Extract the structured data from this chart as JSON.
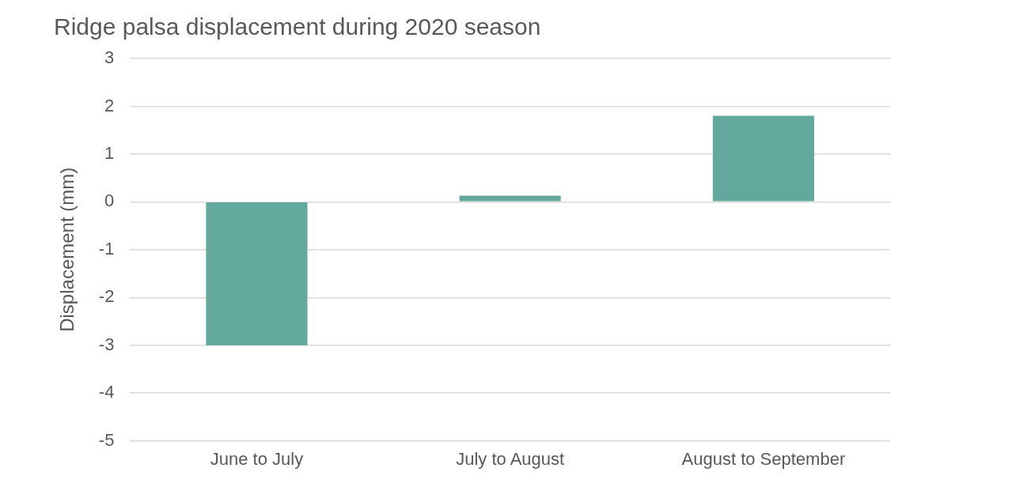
{
  "chart_data": {
    "type": "bar",
    "title": "Ridge palsa displacement during 2020 season",
    "ylabel": "Displacement (mm)",
    "categories": [
      "June to July",
      "July to August",
      "August to September"
    ],
    "values": [
      -3.0,
      0.13,
      1.8
    ],
    "color": "#62a89c",
    "ylim": [
      -5,
      3
    ],
    "yticks": [
      -5,
      -4,
      -3,
      -2,
      -1,
      0,
      1,
      2,
      3
    ],
    "grid": "y",
    "legend": false
  }
}
